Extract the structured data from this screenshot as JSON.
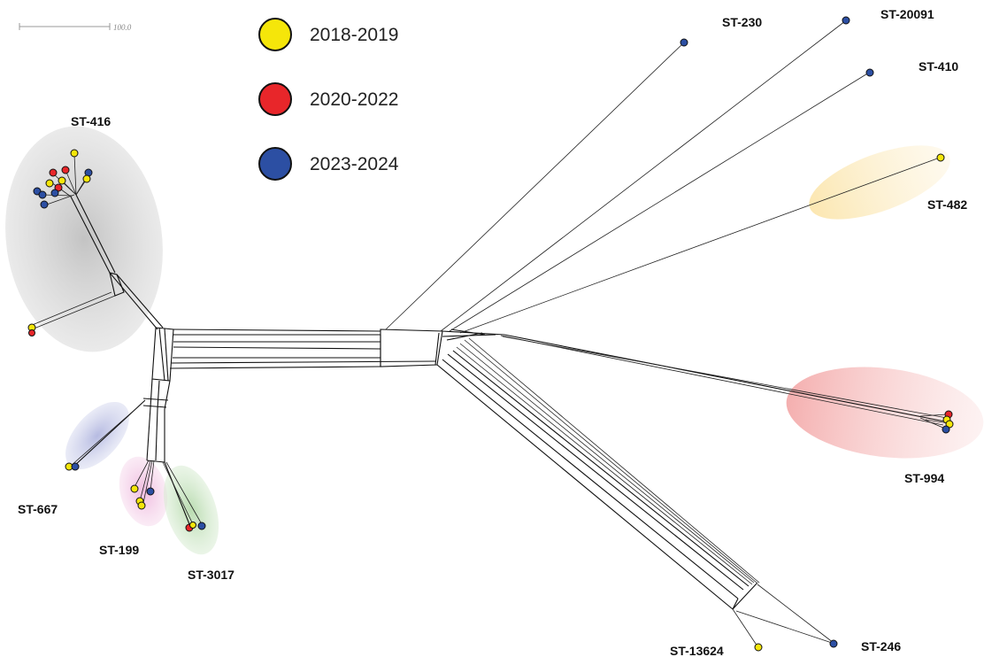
{
  "scale_bar": {
    "label": "100.0"
  },
  "legend": [
    {
      "label": "2018-2019",
      "color": "#f5e60a"
    },
    {
      "label": "2020-2022",
      "color": "#e8262a"
    },
    {
      "label": "2023-2024",
      "color": "#2c4fa3"
    }
  ],
  "clusters": [
    {
      "label": "ST-416",
      "highlight": "#b9b9b9"
    },
    {
      "label": "ST-667",
      "highlight": "#b9bde0"
    },
    {
      "label": "ST-199",
      "highlight": "#f0bde0"
    },
    {
      "label": "ST-3017",
      "highlight": "#b9dcb0"
    },
    {
      "label": "ST-482",
      "highlight": "#fbe9b8"
    },
    {
      "label": "ST-994",
      "highlight": "#f6b9b9"
    }
  ],
  "leaves": [
    {
      "label": "ST-230"
    },
    {
      "label": "ST-20091"
    },
    {
      "label": "ST-410"
    },
    {
      "label": "ST-13624"
    },
    {
      "label": "ST-246"
    }
  ]
}
